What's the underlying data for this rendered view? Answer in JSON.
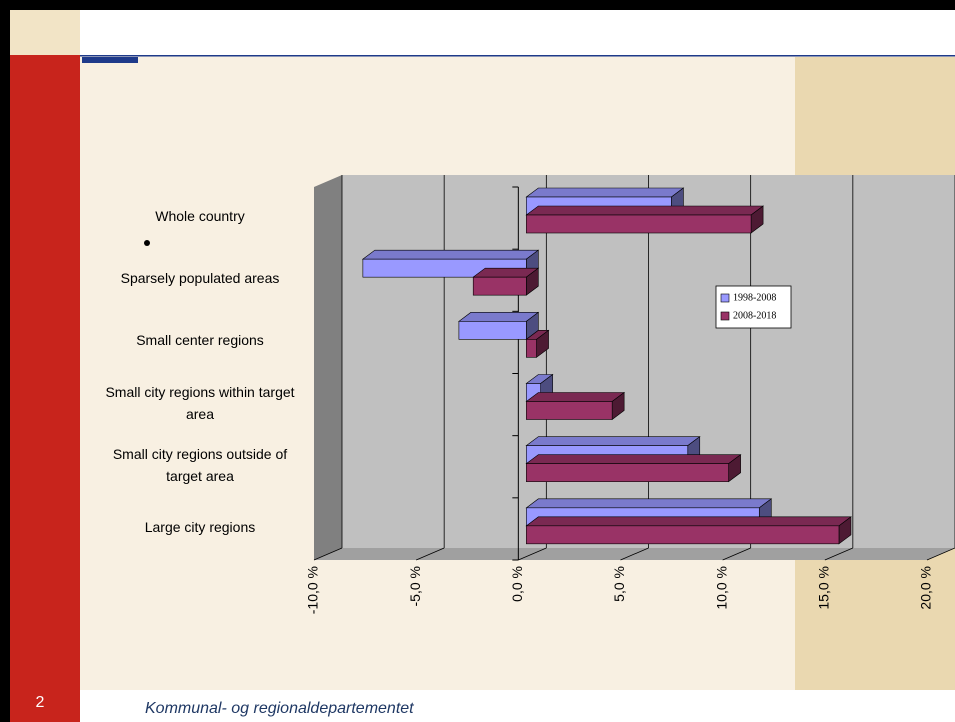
{
  "slide_number": "2",
  "footer": "Kommunal- og regionaldepartementet",
  "chart_data": {
    "type": "bar",
    "orientation": "horizontal",
    "categories": [
      "Whole country",
      "Sparsely populated areas",
      "Small center regions",
      "Small city regions within target area",
      "Small city regions outside of target area",
      "Large city regions"
    ],
    "series": [
      {
        "name": "1998-2008",
        "color": "#9999ff",
        "values": [
          7.1,
          -8.0,
          -3.3,
          0.7,
          7.9,
          11.4
        ]
      },
      {
        "name": "2008-2018",
        "color": "#993366",
        "values": [
          11.0,
          -2.6,
          0.5,
          4.2,
          9.9,
          15.3
        ]
      }
    ],
    "xlim": [
      -10,
      20
    ],
    "xticks": [
      {
        "value": -10,
        "label": "-10,0 %"
      },
      {
        "value": -5,
        "label": "-5,0 %"
      },
      {
        "value": 0,
        "label": "0,0 %"
      },
      {
        "value": 5,
        "label": "5,0 %"
      },
      {
        "value": 10,
        "label": "10,0 %"
      },
      {
        "value": 15,
        "label": "15,0 %"
      },
      {
        "value": 20,
        "label": "20,0 %"
      }
    ],
    "grid": true,
    "legend": "right"
  }
}
